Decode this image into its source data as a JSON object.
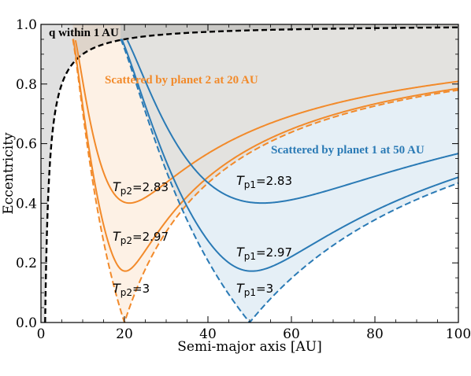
{
  "chart_data": {
    "type": "line",
    "xlabel": "Semi-major axis [AU]",
    "ylabel": "Eccentricity",
    "xlim": [
      0,
      100
    ],
    "ylim": [
      0,
      1.0
    ],
    "x_ticks": [
      "0",
      "20",
      "40",
      "60",
      "80",
      "100"
    ],
    "y_ticks": [
      "0.0",
      "0.2",
      "0.4",
      "0.6",
      "0.8",
      "1.0"
    ],
    "grid": false,
    "colors": {
      "planet1": "#2a7ab5",
      "planet2": "#f28a2a",
      "q_curve": "#000000"
    },
    "annotations": [
      {
        "text": "q within 1 AU",
        "color": "#000000"
      },
      {
        "text": "Scattered by planet 2 at 20 AU",
        "color": "#f28a2a"
      },
      {
        "text": "Scattered by planet 1 at 50 AU",
        "color": "#2a7ab5"
      }
    ],
    "series": [
      {
        "group": "q_limit",
        "style": "dashed",
        "a_min": 1.0
      },
      {
        "group": "planet2",
        "planet_a": 20,
        "Tp": 2.83
      },
      {
        "group": "planet2",
        "planet_a": 20,
        "Tp": 2.97
      },
      {
        "group": "planet2",
        "planet_a": 20,
        "Tp": 3
      },
      {
        "group": "planet1",
        "planet_a": 50,
        "Tp": 2.83
      },
      {
        "group": "planet1",
        "planet_a": 50,
        "Tp": 2.97
      },
      {
        "group": "planet1",
        "planet_a": 50,
        "Tp": 3
      }
    ],
    "curve_labels": [
      {
        "prefix": "T",
        "sub": "p2",
        "value": "=2.83"
      },
      {
        "prefix": "T",
        "sub": "p2",
        "value": "=2.97"
      },
      {
        "prefix": "T",
        "sub": "p2",
        "value": "=3"
      },
      {
        "prefix": "T",
        "sub": "p1",
        "value": "=2.83"
      },
      {
        "prefix": "T",
        "sub": "p1",
        "value": "=2.97"
      },
      {
        "prefix": "T",
        "sub": "p1",
        "value": "=3"
      }
    ]
  }
}
